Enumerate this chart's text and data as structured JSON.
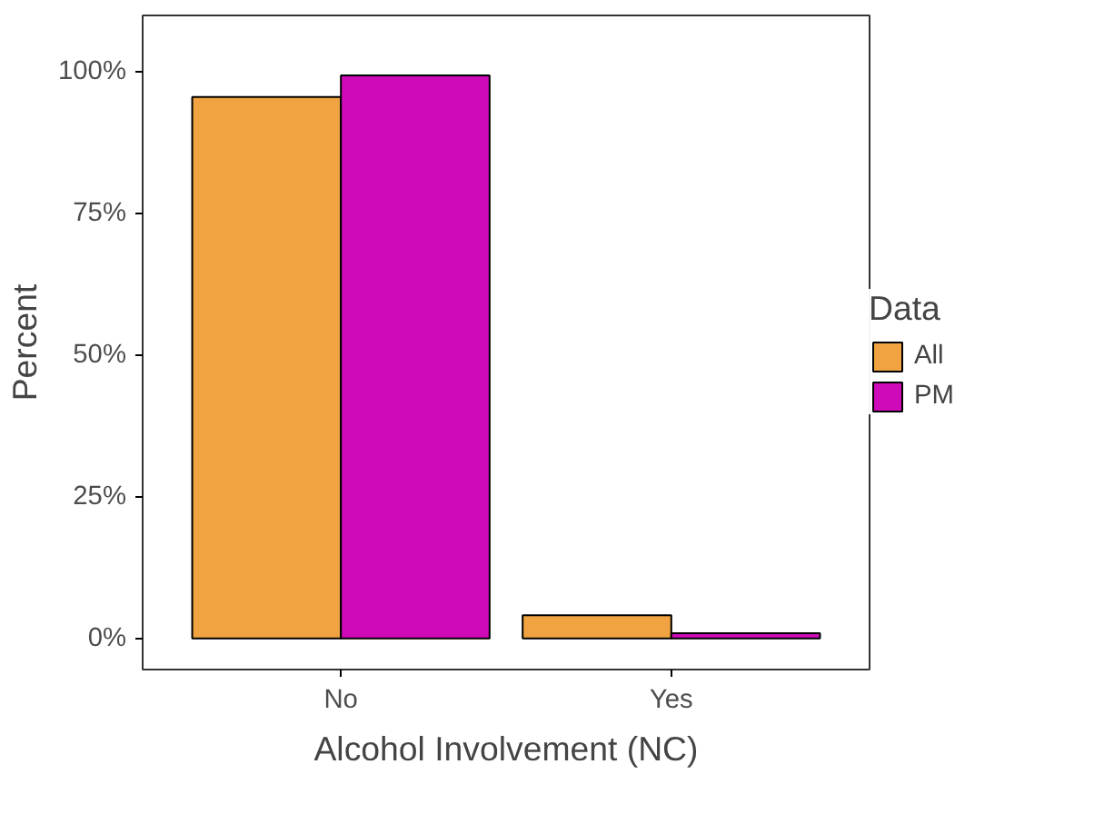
{
  "chart_data": {
    "type": "bar",
    "xlabel": "Alcohol Involvement (NC)",
    "ylabel": "Percent",
    "legend_title": "Data",
    "categories": [
      "No",
      "Yes"
    ],
    "series": [
      {
        "name": "All",
        "color": "#f0a340",
        "values": [
          95.6,
          4.1
        ]
      },
      {
        "name": "PM",
        "color": "#cf0ab8",
        "values": [
          99.4,
          0.9
        ]
      }
    ],
    "ylim": [
      -5.5,
      110
    ],
    "yticks": [
      {
        "value": 0,
        "label": "0%"
      },
      {
        "value": 25,
        "label": "25%"
      },
      {
        "value": 50,
        "label": "50%"
      },
      {
        "value": 75,
        "label": "75%"
      },
      {
        "value": 100,
        "label": "100%"
      }
    ],
    "grid": false,
    "legend": "right"
  }
}
